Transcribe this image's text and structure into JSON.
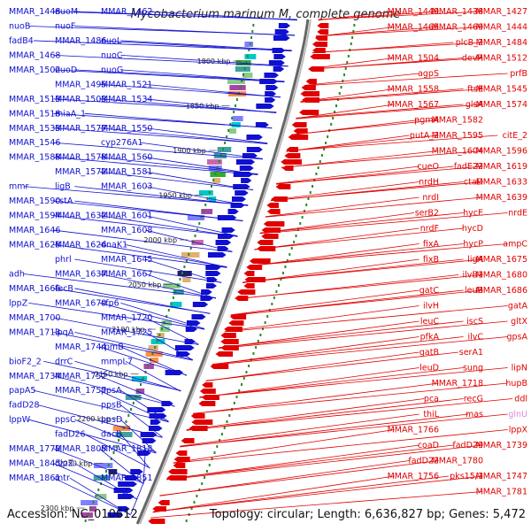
{
  "title": "Mycobacterium marinum M, complete genome",
  "footer": {
    "accession": "Accession: NC_010612",
    "topology": "Topology: circular; Length: 6,636,827 bp; Genes: 5,472"
  },
  "colors": {
    "forward": "#1010d0",
    "reverse": "#e00000",
    "backbone": "#888888",
    "rna": "#dd88dd"
  },
  "ruler": [
    "1800 kbp",
    "1850 kbp",
    "1900 kbp",
    "1950 kbp",
    "2000 kbp",
    "2050 kbp",
    "2100 kbp",
    "2150 kbp",
    "2200 kbp",
    "2250 kbp",
    "2300 kbp"
  ],
  "labels_left": [
    "MMAR_1448",
    "nuoM",
    "MMAR_1462",
    "nuoB",
    "nuoF",
    "nuoL",
    "fadB4",
    "MMAR_1486",
    "nuoC",
    "MMAR_1468",
    "nuoD",
    "nuoG",
    "MMAR_1502",
    "MMAR_1495",
    "MMAR_1521",
    "MMAR_1513",
    "MMAR_1503",
    "MMAR_1534",
    "MMAR_1518",
    "miaA_1",
    "MMAR_1550",
    "MMAR_1533",
    "MMAR_1577",
    "cyp276A1",
    "MMAR_1546",
    "MMAR_1578",
    "MMAR_1560",
    "MMAR_1588",
    "MMAR_1572",
    "MMAR_1581",
    "mmr",
    "ligB",
    "MMAR_1603",
    "MMAR_1590",
    "cstA",
    "MMAR_1601",
    "MMAR_1594",
    "MMAR_1632",
    "MMAR_1608",
    "MMAR_1646",
    "MMAR_1626",
    "dnaK1",
    "MMAR_1628",
    "phrl",
    "MMAR_1645",
    "adh",
    "MMAR_1637",
    "MMAR_1667",
    "MMAR_1666",
    "fecB",
    "cfp6",
    "lppZ",
    "MMAR_1679",
    "MMAR_1720",
    "MMAR_1700",
    "lpqA",
    "MMAR_1725",
    "MMAR_1713",
    "MMAR_1744",
    "rpmB",
    "bioF2_2",
    "drrC",
    "mmpL7",
    "MMAR_1734",
    "MMAR_1752",
    "ppsA",
    "papA5",
    "MMAR_1757",
    "ppsB",
    "fadD28",
    "ppsC",
    "ppsD",
    "lppW",
    "fadD26",
    "dacB",
    "MMAR_1779",
    "MMAR_1808",
    "MMAR_1818",
    "MMAR_1845",
    "dipZ",
    "MMAR_1851",
    "MMAR_1861",
    "mtr"
  ],
  "labels_right": [
    "MMAR_1427",
    "MMAR_1438",
    "MMAR_1449",
    "MMAR_1444",
    "MMAR_1469",
    "MMAR_1465",
    "MMAR_1484",
    "plcB_2",
    "MMAR_1504",
    "MMAR_1512",
    "devR",
    "agpS",
    "prfB",
    "ftsE",
    "MMAR_1558",
    "MMAR_1545",
    "glsA",
    "MMAR_1567",
    "MMAR_1574",
    "MMAR_1582",
    "pgmA",
    "citE_2",
    "MMAR_1595",
    "putA_2",
    "MMAR_1596",
    "MMAR_1604",
    "cueO",
    "MMAR_1619",
    "fadE22",
    "nrdH",
    "MMAR_1633",
    "ctaD",
    "nrdI",
    "MMAR_1639",
    "hycE",
    "serB2",
    "nrdE",
    "hycD",
    "nrdF",
    "ampC",
    "hycP",
    "fixA",
    "MMAR_1675",
    "ligA",
    "fixB",
    "MMAR_1680",
    "ilvB1",
    "gatC",
    "MMAR_1686",
    "leuB",
    "ilvH",
    "gatA",
    "iscS",
    "leuC",
    "gltX",
    "ilvC",
    "pfkA",
    "gpsA",
    "serA1",
    "gatB",
    "lipN",
    "sung",
    "leuD",
    "hupB",
    "MMAR_1718",
    "pca",
    "ddl",
    "recG",
    "thiL",
    "glnU",
    "mas",
    "MMAR_1766",
    "lppX",
    "fadD29",
    "coaD",
    "MMAR_1739",
    "MMAR_1780",
    "fadD22",
    "MMAR_1747",
    "pks15/1",
    "MMAR_1756",
    "MMAR_1781"
  ]
}
